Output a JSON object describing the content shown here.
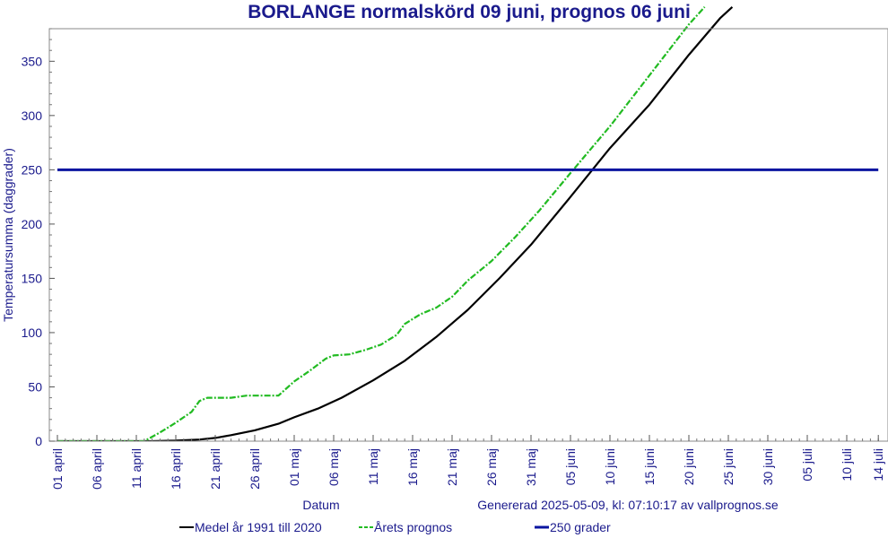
{
  "chart_data": {
    "type": "line",
    "title": "BORLANGE normalskörd 09 juni, prognos 06 juni",
    "xlabel": "Datum",
    "ylabel": "Temperatursumma (daggrader)",
    "ylim": [
      0,
      380
    ],
    "y_ticks": [
      0,
      50,
      100,
      150,
      200,
      250,
      300,
      350
    ],
    "x_ticks": [
      {
        "day": 0,
        "label": "01 april"
      },
      {
        "day": 5,
        "label": "06 april"
      },
      {
        "day": 10,
        "label": "11 april"
      },
      {
        "day": 15,
        "label": "16 april"
      },
      {
        "day": 20,
        "label": "21 april"
      },
      {
        "day": 25,
        "label": "26 april"
      },
      {
        "day": 30,
        "label": "01 maj"
      },
      {
        "day": 35,
        "label": "06 maj"
      },
      {
        "day": 40,
        "label": "11 maj"
      },
      {
        "day": 45,
        "label": "16 maj"
      },
      {
        "day": 50,
        "label": "21 maj"
      },
      {
        "day": 55,
        "label": "26 maj"
      },
      {
        "day": 60,
        "label": "31 maj"
      },
      {
        "day": 65,
        "label": "05 juni"
      },
      {
        "day": 70,
        "label": "10 juni"
      },
      {
        "day": 75,
        "label": "15 juni"
      },
      {
        "day": 80,
        "label": "20 juni"
      },
      {
        "day": 85,
        "label": "25 juni"
      },
      {
        "day": 90,
        "label": "30 juni"
      },
      {
        "day": 95,
        "label": "05 juli"
      },
      {
        "day": 100,
        "label": "10 juli"
      },
      {
        "day": 104,
        "label": "14 juli"
      }
    ],
    "x_range": [
      0,
      104
    ],
    "series": [
      {
        "name": "Medel år 1991 till 2020",
        "color": "#000000",
        "style": "solid",
        "x": [
          0,
          5,
          10,
          12,
          15,
          18,
          20,
          22,
          25,
          28,
          30,
          33,
          36,
          40,
          44,
          48,
          52,
          56,
          60,
          65,
          70,
          75,
          80,
          84,
          85.5
        ],
        "y": [
          0,
          0,
          0,
          0,
          0.5,
          1.5,
          3,
          5.5,
          10,
          16,
          22,
          30,
          40,
          56,
          74,
          96,
          121,
          150,
          181,
          225,
          270,
          310,
          356,
          390,
          400
        ]
      },
      {
        "name": "Årets prognos",
        "color": "#22bb22",
        "style": "dashed",
        "x": [
          0,
          5,
          10,
          11,
          13,
          15,
          17,
          18,
          19,
          20,
          22,
          24,
          26,
          28,
          30,
          32,
          34,
          35,
          37,
          39,
          41,
          43,
          44,
          46,
          48,
          50,
          52,
          55,
          58,
          61,
          65,
          70,
          75,
          80,
          82
        ],
        "y": [
          0,
          0,
          0,
          0,
          8,
          17,
          27,
          37,
          40,
          40,
          40,
          42,
          42,
          42,
          55,
          65,
          76,
          79,
          80,
          84,
          89,
          98,
          108,
          117,
          123,
          133,
          148,
          166,
          188,
          212,
          247,
          290,
          337,
          384,
          400
        ]
      },
      {
        "name": "250 grader",
        "color": "#0a14a0",
        "style": "solid",
        "x": [
          0,
          104
        ],
        "y": [
          250,
          250
        ]
      }
    ],
    "legend_position": "bottom",
    "footer_note": "Genererad 2025-05-09, kl: 07:10:17 av vallprognos.se"
  }
}
